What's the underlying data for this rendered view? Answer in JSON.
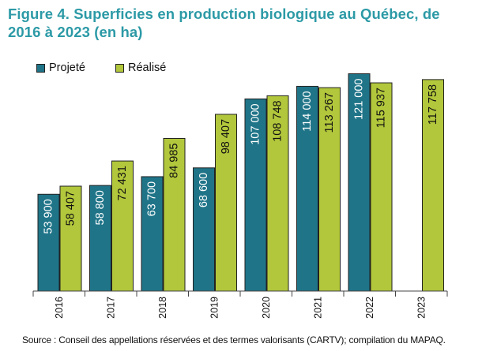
{
  "title": "Figure 4. Superficies en production biologique au Québec, de 2016 à 2023 (en ha)",
  "source": "Source : Conseil des appellations réservées et des termes valorisants (CARTV); compilation du MAPAQ.",
  "colors": {
    "title": "#2c9aa6",
    "projete": "#1f7488",
    "realise": "#b2c73b",
    "outline": "#222222"
  },
  "chart_data": {
    "type": "bar",
    "title": "Figure 4. Superficies en production biologique au Québec, de 2016 à 2023 (en ha)",
    "xlabel": "",
    "ylabel": "",
    "ylim": [
      0,
      130000
    ],
    "grid": false,
    "legend": "top-left",
    "categories": [
      "2016",
      "2017",
      "2018",
      "2019",
      "2020",
      "2021",
      "2022",
      "2023"
    ],
    "series": [
      {
        "name": "Projeté",
        "color": "#1f7488",
        "values": [
          53900,
          58800,
          63700,
          68600,
          107000,
          114000,
          121000,
          null
        ],
        "labels": [
          "53 900",
          "58 800",
          "63 700",
          "68 600",
          "107 000",
          "114 000",
          "121 000",
          ""
        ]
      },
      {
        "name": "Réalisé",
        "color": "#b2c73b",
        "values": [
          58407,
          72431,
          84985,
          98407,
          108748,
          113267,
          115937,
          117758
        ],
        "labels": [
          "58 407",
          "72 431",
          "84 985",
          "98 407",
          "108 748",
          "113 267",
          "115 937",
          "117 758"
        ]
      }
    ]
  }
}
